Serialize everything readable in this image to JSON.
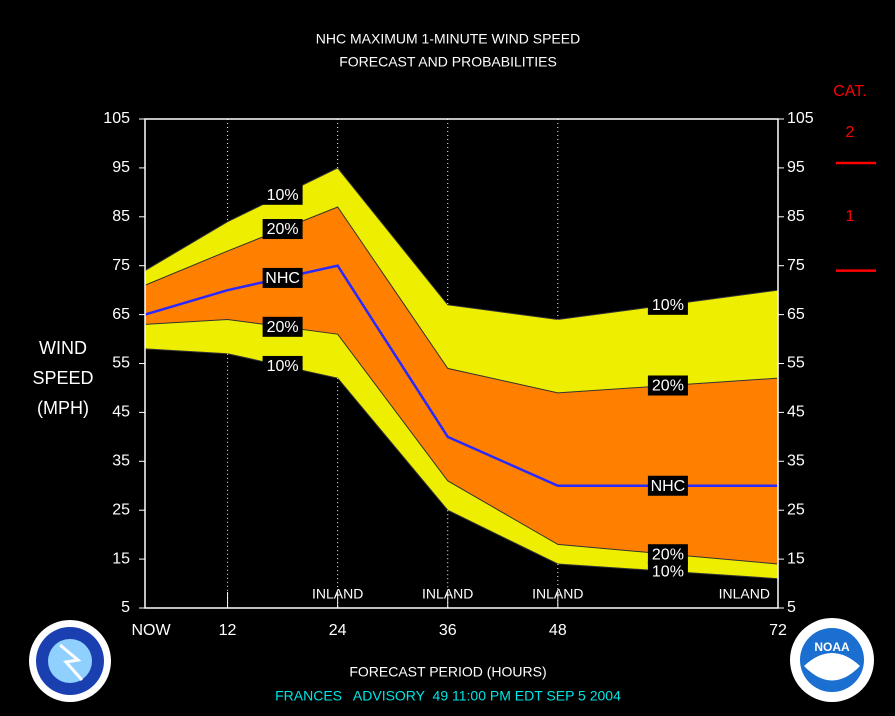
{
  "chart_data": {
    "type": "probability-bands",
    "title": [
      "NHC MAXIMUM 1-MINUTE WIND SPEED",
      "FORECAST AND PROBABILITIES"
    ],
    "y_label": [
      "WIND",
      "SPEED",
      "(MPH)"
    ],
    "x_label": "FORECAST PERIOD (HOURS)",
    "footer": "FRANCES   ADVISORY  49 11:00 PM EDT SEP 5 2004",
    "x": [
      3,
      12,
      24,
      36,
      48,
      72
    ],
    "series": [
      {
        "name": "10%",
        "style": "area",
        "color": "#eeee00",
        "values": [
          74,
          84,
          95,
          67,
          64,
          70
        ]
      },
      {
        "name": "20%",
        "style": "area",
        "color": "#ff8000",
        "values": [
          71,
          78,
          87,
          54,
          49,
          52
        ]
      },
      {
        "name": "20%",
        "style": "area",
        "color": "#eeee00",
        "values": [
          63,
          64,
          61,
          31,
          18,
          14
        ]
      },
      {
        "name": "10%",
        "style": "area",
        "color": "#000000",
        "values": [
          58,
          57,
          52,
          25,
          14,
          11
        ]
      },
      {
        "name": "NHC",
        "style": "line",
        "color": "#2828ff",
        "values": [
          65,
          70,
          75,
          40,
          30,
          30
        ]
      }
    ],
    "xlim": [
      3,
      72
    ],
    "xticks": [
      {
        "value": 3,
        "label": "NOW"
      },
      12,
      24,
      36,
      48,
      72
    ],
    "ylim": [
      5,
      105
    ],
    "yticks": [
      5,
      15,
      25,
      35,
      45,
      55,
      65,
      75,
      85,
      95,
      105
    ],
    "annotations": [
      {
        "x": 24,
        "text": "INLAND"
      },
      {
        "x": 36,
        "text": "INLAND"
      },
      {
        "x": 48,
        "text": "INLAND"
      },
      {
        "x": 72,
        "text": "INLAND"
      }
    ],
    "cat_scale": {
      "title": "CAT.",
      "color": "#ff0000",
      "levels": [
        {
          "label": "1",
          "value": 74
        },
        {
          "label": "2",
          "value": 96
        }
      ]
    },
    "logo_text": "NOAA"
  }
}
